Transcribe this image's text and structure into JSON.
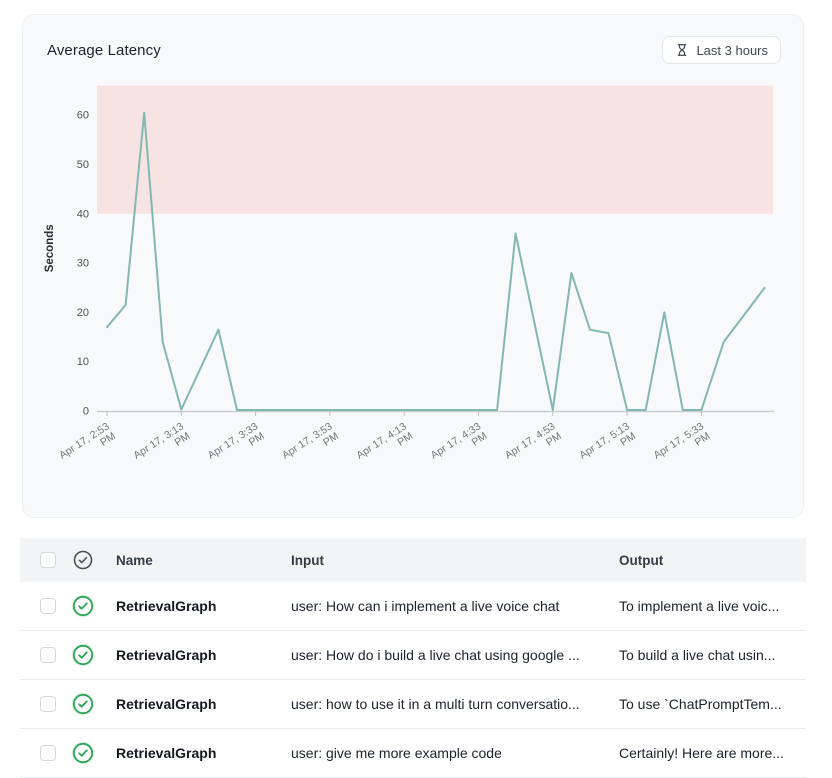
{
  "card": {
    "title": "Average Latency",
    "time_range_button": {
      "label": "Last 3 hours",
      "icon": "hourglass-icon"
    }
  },
  "chart_data": {
    "type": "line",
    "title": "Average Latency",
    "xlabel": "",
    "ylabel": "Seconds",
    "ylim": [
      0,
      66
    ],
    "y_ticks": [
      0,
      10,
      20,
      30,
      40,
      50,
      60
    ],
    "grid": false,
    "legend": "none",
    "line_color": "#82b7b3",
    "axis_color": "#c9ccd1",
    "threshold_band": {
      "from_seconds": 40,
      "to_seconds": 66,
      "color": "#f8e3e3"
    },
    "x_ticks": [
      {
        "min": 0,
        "label": "Apr 17, 2:53 PM"
      },
      {
        "min": 20,
        "label": "Apr 17, 3:13 PM"
      },
      {
        "min": 40,
        "label": "Apr 17, 3:33 PM"
      },
      {
        "min": 60,
        "label": "Apr 17, 3:53 PM"
      },
      {
        "min": 80,
        "label": "Apr 17, 4:13 PM"
      },
      {
        "min": 100,
        "label": "Apr 17, 4:33 PM"
      },
      {
        "min": 120,
        "label": "Apr 17, 4:53 PM"
      },
      {
        "min": 140,
        "label": "Apr 17, 5:13 PM"
      },
      {
        "min": 160,
        "label": "Apr 17, 5:33 PM"
      }
    ],
    "series": [
      {
        "name": "Average Latency (seconds)",
        "points_min_sec": [
          [
            0,
            17
          ],
          [
            5,
            21.5
          ],
          [
            10,
            60.5
          ],
          [
            15,
            14
          ],
          [
            20,
            0.3
          ],
          [
            30,
            16.5
          ],
          [
            35,
            0.2
          ],
          [
            105,
            0.2
          ],
          [
            110,
            36
          ],
          [
            120,
            0.2
          ],
          [
            125,
            28
          ],
          [
            130,
            16.5
          ],
          [
            135,
            15.8
          ],
          [
            140,
            0.2
          ],
          [
            145,
            0.2
          ],
          [
            150,
            20
          ],
          [
            155,
            0.2
          ],
          [
            160,
            0.2
          ],
          [
            166,
            14
          ],
          [
            177,
            25
          ]
        ]
      }
    ]
  },
  "table": {
    "columns": [
      "Name",
      "Input",
      "Output"
    ],
    "status_colors": {
      "success": "#2aa653"
    },
    "rows": [
      {
        "status": "success",
        "name": "RetrievalGraph",
        "input": "user: How can i implement a live voice chat",
        "output": "To implement a live voic..."
      },
      {
        "status": "success",
        "name": "RetrievalGraph",
        "input": "user: How do i build a live chat using google ...",
        "output": "To build a live chat usin..."
      },
      {
        "status": "success",
        "name": "RetrievalGraph",
        "input": "user: how to use it in a multi turn conversatio...",
        "output": "To use `ChatPromptTem..."
      },
      {
        "status": "success",
        "name": "RetrievalGraph",
        "input": "user: give me more example code",
        "output": "Certainly! Here are more..."
      }
    ]
  }
}
